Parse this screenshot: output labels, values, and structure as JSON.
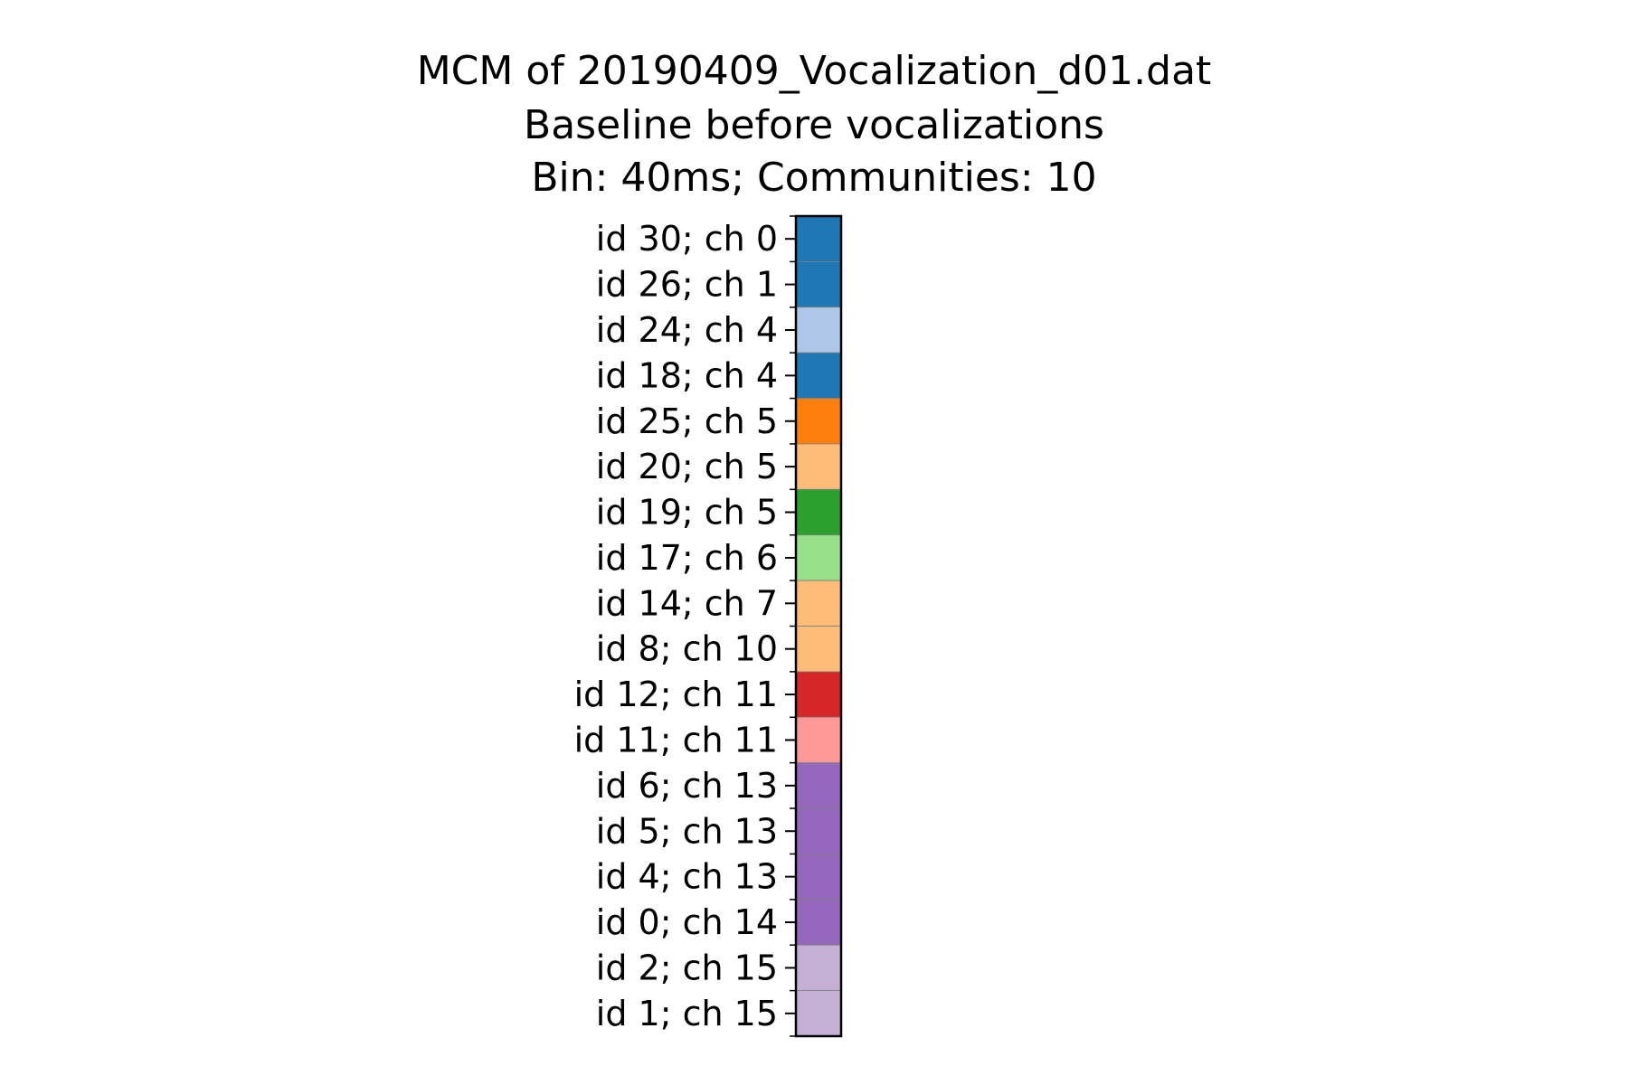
{
  "chart_data": {
    "type": "heatmap",
    "title": [
      "MCM of 20190409_Vocalization_d01.dat",
      "Baseline before vocalizations",
      "Bin: 40ms; Communities: 10"
    ],
    "xlabel": "",
    "ylabel": "",
    "grid": false,
    "legend": "none",
    "rows": [
      {
        "label": "id 30; ch 0",
        "community": 0,
        "color": "#1f77b4"
      },
      {
        "label": "id 26; ch 1",
        "community": 0,
        "color": "#1f77b4"
      },
      {
        "label": "id 24; ch 4",
        "community": 1,
        "color": "#aec7e8"
      },
      {
        "label": "id 18; ch 4",
        "community": 0,
        "color": "#1f77b4"
      },
      {
        "label": "id 25; ch 5",
        "community": 2,
        "color": "#ff7f0e"
      },
      {
        "label": "id 20; ch 5",
        "community": 3,
        "color": "#ffbb78"
      },
      {
        "label": "id 19; ch 5",
        "community": 4,
        "color": "#2ca02c"
      },
      {
        "label": "id 17; ch 6",
        "community": 5,
        "color": "#98df8a"
      },
      {
        "label": "id 14; ch 7",
        "community": 3,
        "color": "#ffbb78"
      },
      {
        "label": "id 8; ch 10",
        "community": 3,
        "color": "#ffbb78"
      },
      {
        "label": "id 12; ch 11",
        "community": 6,
        "color": "#d62728"
      },
      {
        "label": "id 11; ch 11",
        "community": 7,
        "color": "#ff9896"
      },
      {
        "label": "id 6; ch 13",
        "community": 8,
        "color": "#9467bd"
      },
      {
        "label": "id 5; ch 13",
        "community": 8,
        "color": "#9467bd"
      },
      {
        "label": "id 4; ch 13",
        "community": 8,
        "color": "#9467bd"
      },
      {
        "label": "id 0; ch 14",
        "community": 8,
        "color": "#9467bd"
      },
      {
        "label": "id 2; ch 15",
        "community": 9,
        "color": "#c5b0d5"
      },
      {
        "label": "id 1; ch 15",
        "community": 9,
        "color": "#c5b0d5"
      }
    ]
  }
}
